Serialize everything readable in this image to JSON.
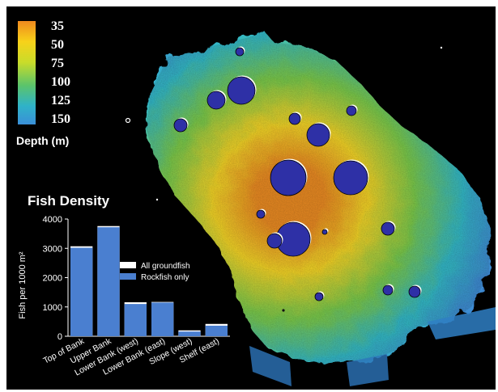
{
  "depth_legend": {
    "ticks": [
      "35",
      "50",
      "75",
      "100",
      "125",
      "150"
    ],
    "title": "Depth (m)",
    "colors": [
      "#f08a1e",
      "#f7d21a",
      "#c9dc2a",
      "#5cc46a",
      "#2fb3c8",
      "#3a8fd8"
    ]
  },
  "bank_colors": {
    "shallow": "#e98a22",
    "mid": "#f2d327",
    "lower": "#7ac94b",
    "deep": "#33b8c6",
    "deepest": "#3e86d3",
    "circle_fill": "#2e30a6"
  },
  "chart_data": {
    "type": "bar",
    "title": "Fish Density",
    "ylabel": "Fish per 1000 m²",
    "categories": [
      "Top of Bank",
      "Upper Bank",
      "Lower Bank (west)",
      "Lower Bank (east)",
      "Slope (west)",
      "Shelf (east)"
    ],
    "series": [
      {
        "name": "All groundfish",
        "values": [
          3070,
          3760,
          1160,
          1170,
          200,
          420
        ],
        "color": "#ffffff"
      },
      {
        "name": "Rockfish only",
        "values": [
          3020,
          3720,
          1100,
          1150,
          160,
          360
        ],
        "color": "#4a7fd0"
      }
    ],
    "ylim": [
      0,
      4000
    ],
    "yticks": [
      "0",
      "1000",
      "2000",
      "3000",
      "4000"
    ],
    "grid": false,
    "legend_position": "right"
  }
}
